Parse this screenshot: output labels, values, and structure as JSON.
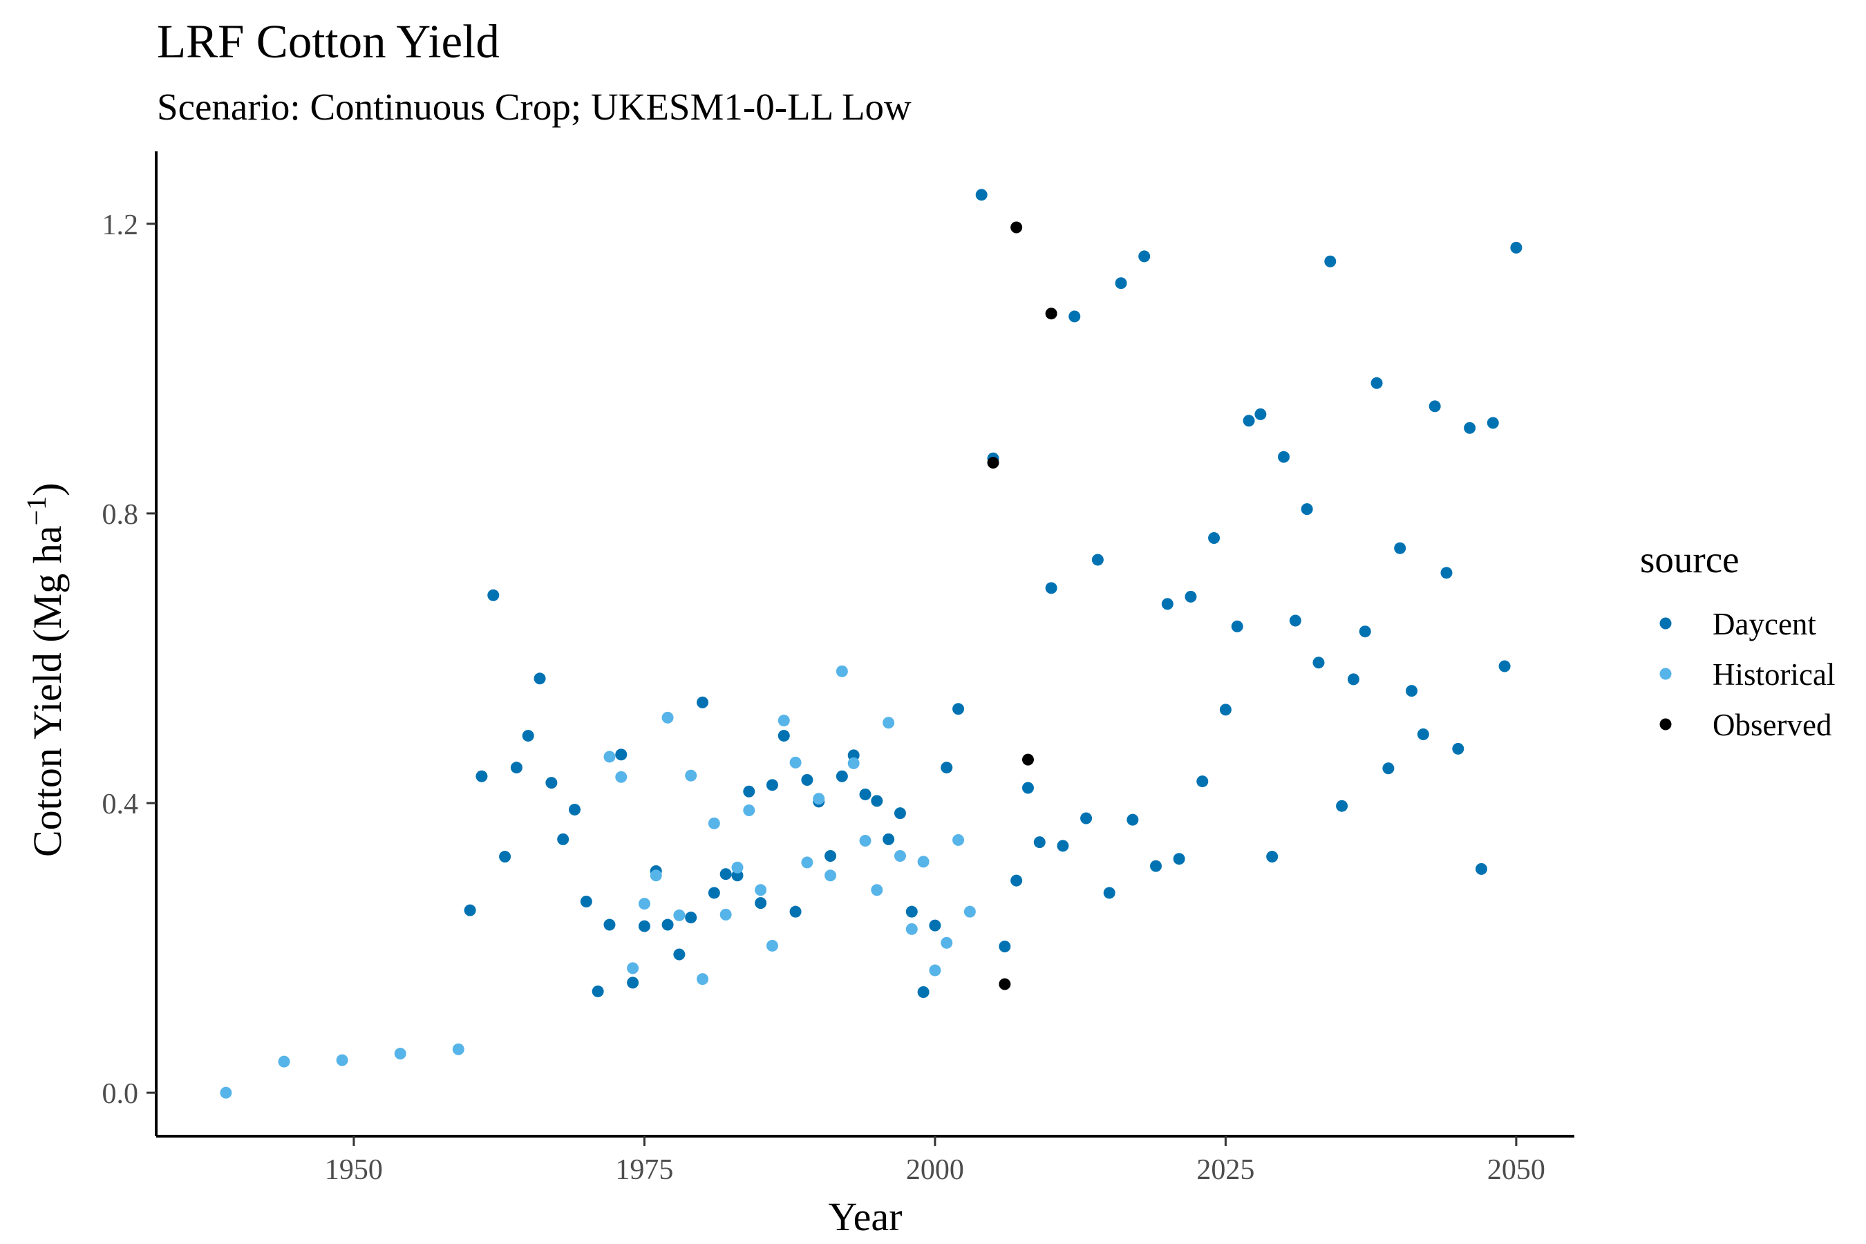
{
  "chart_data": {
    "type": "scatter",
    "title": "LRF Cotton Yield",
    "subtitle": "Scenario: Continuous Crop; UKESM1-0-LL Low",
    "xlabel": "Year",
    "ylabel": "Cotton Yield (Mg ha",
    "ylabel_sup": "−1",
    "ylabel_close": ")",
    "xlim": [
      1933,
      2055
    ],
    "ylim": [
      -0.06,
      1.3
    ],
    "x_ticks": [
      1950,
      1975,
      2000,
      2025,
      2050
    ],
    "x_tick_labels": [
      "1950",
      "1975",
      "2000",
      "2025",
      "2050"
    ],
    "y_ticks": [
      0.0,
      0.4,
      0.8,
      1.2
    ],
    "y_tick_labels": [
      "0.0",
      "0.4",
      "0.8",
      "1.2"
    ],
    "grid": false,
    "legend": {
      "title": "source",
      "placement": "right"
    },
    "series": [
      {
        "name": "Daycent",
        "color": "#0072b2",
        "points": [
          [
            1960,
            0.252
          ],
          [
            1961,
            0.437
          ],
          [
            1962,
            0.687
          ],
          [
            1963,
            0.326
          ],
          [
            1964,
            0.449
          ],
          [
            1965,
            0.493
          ],
          [
            1966,
            0.572
          ],
          [
            1967,
            0.428
          ],
          [
            1968,
            0.35
          ],
          [
            1969,
            0.391
          ],
          [
            1970,
            0.264
          ],
          [
            1971,
            0.14
          ],
          [
            1972,
            0.232
          ],
          [
            1973,
            0.467
          ],
          [
            1974,
            0.152
          ],
          [
            1975,
            0.23
          ],
          [
            1976,
            0.306
          ],
          [
            1977,
            0.232
          ],
          [
            1978,
            0.191
          ],
          [
            1979,
            0.242
          ],
          [
            1980,
            0.539
          ],
          [
            1981,
            0.276
          ],
          [
            1982,
            0.302
          ],
          [
            1983,
            0.3
          ],
          [
            1984,
            0.416
          ],
          [
            1985,
            0.262
          ],
          [
            1986,
            0.425
          ],
          [
            1987,
            0.493
          ],
          [
            1988,
            0.25
          ],
          [
            1989,
            0.432
          ],
          [
            1990,
            0.402
          ],
          [
            1991,
            0.327
          ],
          [
            1992,
            0.437
          ],
          [
            1993,
            0.466
          ],
          [
            1994,
            0.412
          ],
          [
            1995,
            0.403
          ],
          [
            1996,
            0.35
          ],
          [
            1997,
            0.386
          ],
          [
            1998,
            0.25
          ],
          [
            1999,
            0.139
          ],
          [
            2000,
            0.231
          ],
          [
            2001,
            0.449
          ],
          [
            2002,
            0.53
          ],
          [
            2004,
            1.24
          ],
          [
            2005,
            0.876
          ],
          [
            2006,
            0.202
          ],
          [
            2007,
            0.293
          ],
          [
            2008,
            0.421
          ],
          [
            2009,
            0.346
          ],
          [
            2010,
            0.697
          ],
          [
            2011,
            0.341
          ],
          [
            2012,
            1.072
          ],
          [
            2013,
            0.379
          ],
          [
            2014,
            0.736
          ],
          [
            2015,
            0.276
          ],
          [
            2016,
            1.118
          ],
          [
            2017,
            0.377
          ],
          [
            2018,
            1.155
          ],
          [
            2019,
            0.313
          ],
          [
            2020,
            0.675
          ],
          [
            2021,
            0.323
          ],
          [
            2022,
            0.685
          ],
          [
            2023,
            0.43
          ],
          [
            2024,
            0.766
          ],
          [
            2025,
            0.529
          ],
          [
            2026,
            0.644
          ],
          [
            2027,
            0.928
          ],
          [
            2028,
            0.937
          ],
          [
            2029,
            0.326
          ],
          [
            2030,
            0.878
          ],
          [
            2031,
            0.652
          ],
          [
            2032,
            0.806
          ],
          [
            2033,
            0.594
          ],
          [
            2034,
            1.148
          ],
          [
            2035,
            0.396
          ],
          [
            2036,
            0.571
          ],
          [
            2037,
            0.637
          ],
          [
            2038,
            0.98
          ],
          [
            2039,
            0.448
          ],
          [
            2040,
            0.752
          ],
          [
            2041,
            0.555
          ],
          [
            2042,
            0.495
          ],
          [
            2043,
            0.948
          ],
          [
            2044,
            0.718
          ],
          [
            2045,
            0.475
          ],
          [
            2046,
            0.918
          ],
          [
            2047,
            0.309
          ],
          [
            2048,
            0.925
          ],
          [
            2049,
            0.589
          ],
          [
            2050,
            1.167
          ]
        ]
      },
      {
        "name": "Historical",
        "color": "#56b4e9",
        "points": [
          [
            1939,
            0.0
          ],
          [
            1944,
            0.043
          ],
          [
            1949,
            0.045
          ],
          [
            1954,
            0.054
          ],
          [
            1959,
            0.06
          ],
          [
            1972,
            0.464
          ],
          [
            1973,
            0.436
          ],
          [
            1974,
            0.172
          ],
          [
            1975,
            0.261
          ],
          [
            1976,
            0.3
          ],
          [
            1977,
            0.518
          ],
          [
            1978,
            0.245
          ],
          [
            1979,
            0.438
          ],
          [
            1980,
            0.157
          ],
          [
            1981,
            0.372
          ],
          [
            1982,
            0.246
          ],
          [
            1983,
            0.311
          ],
          [
            1984,
            0.39
          ],
          [
            1985,
            0.28
          ],
          [
            1986,
            0.203
          ],
          [
            1987,
            0.514
          ],
          [
            1988,
            0.456
          ],
          [
            1989,
            0.318
          ],
          [
            1990,
            0.406
          ],
          [
            1991,
            0.3
          ],
          [
            1992,
            0.582
          ],
          [
            1993,
            0.455
          ],
          [
            1994,
            0.348
          ],
          [
            1995,
            0.28
          ],
          [
            1996,
            0.511
          ],
          [
            1997,
            0.327
          ],
          [
            1998,
            0.226
          ],
          [
            1999,
            0.319
          ],
          [
            2000,
            0.169
          ],
          [
            2001,
            0.207
          ],
          [
            2002,
            0.349
          ],
          [
            2003,
            0.25
          ]
        ]
      },
      {
        "name": "Observed",
        "color": "#000000",
        "points": [
          [
            2005,
            0.87
          ],
          [
            2006,
            0.15
          ],
          [
            2007,
            1.195
          ],
          [
            2008,
            0.46
          ],
          [
            2010,
            1.076
          ]
        ]
      }
    ]
  }
}
